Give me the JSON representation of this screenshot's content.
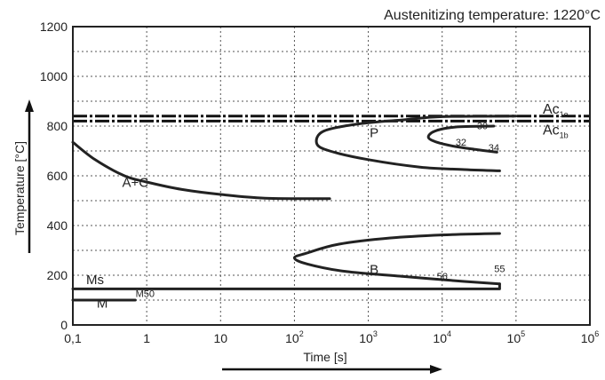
{
  "chart_data": {
    "type": "line",
    "title": "Austenitizing temperature: 1220°C",
    "xlabel": "Time [s]",
    "ylabel": "Temperature [°C]",
    "xscale": "log",
    "xlim": [
      0.1,
      1000000
    ],
    "ylim": [
      0,
      1200
    ],
    "grid": true,
    "x_ticks": [
      {
        "value": 0.1,
        "label": "0,1"
      },
      {
        "value": 1,
        "label": "1"
      },
      {
        "value": 10,
        "label": "10"
      },
      {
        "value": 100,
        "label": "10",
        "exp": "2"
      },
      {
        "value": 1000,
        "label": "10",
        "exp": "3"
      },
      {
        "value": 10000,
        "label": "10",
        "exp": "4"
      },
      {
        "value": 100000,
        "label": "10",
        "exp": "5"
      },
      {
        "value": 1000000,
        "label": "10",
        "exp": "6"
      }
    ],
    "y_ticks": [
      0,
      200,
      400,
      600,
      800,
      1000,
      1200
    ],
    "series": [
      {
        "points": [
          [
            0.1,
            735
          ],
          [
            0.2,
            665
          ],
          [
            0.5,
            600
          ],
          [
            1,
            575
          ],
          [
            3,
            545
          ],
          [
            10,
            525
          ],
          [
            40,
            510
          ],
          [
            300,
            508
          ]
        ]
      },
      {
        "points": [
          [
            100000,
            840
          ],
          [
            10000,
            838
          ],
          [
            3000,
            825
          ],
          [
            800,
            810
          ],
          [
            250,
            780
          ],
          [
            200,
            730
          ],
          [
            300,
            700
          ],
          [
            1000,
            665
          ],
          [
            5000,
            635
          ],
          [
            20000,
            625
          ],
          [
            60000,
            620
          ]
        ]
      },
      {
        "points": [
          [
            50000,
            800
          ],
          [
            15000,
            796
          ],
          [
            8000,
            780
          ],
          [
            6500,
            755
          ],
          [
            8500,
            735
          ],
          [
            15000,
            718
          ],
          [
            30000,
            705
          ],
          [
            55000,
            695
          ]
        ]
      },
      {
        "points": [
          [
            60000,
            368
          ],
          [
            10000,
            362
          ],
          [
            2000,
            350
          ],
          [
            400,
            325
          ],
          [
            150,
            290
          ],
          [
            100,
            270
          ],
          [
            150,
            245
          ],
          [
            500,
            215
          ],
          [
            3000,
            195
          ],
          [
            20000,
            175
          ],
          [
            60000,
            165
          ]
        ]
      },
      {
        "points": [
          [
            0.1,
            145
          ],
          [
            60000,
            145
          ],
          [
            60000,
            165
          ]
        ]
      },
      {
        "points": [
          [
            0.1,
            100
          ],
          [
            0.7,
            100
          ]
        ]
      }
    ],
    "reference_lines": [
      {
        "y": 840,
        "label": "Ac",
        "sub": "1e"
      },
      {
        "y": 820,
        "label": "Ac",
        "sub": "1b"
      }
    ],
    "annotations": [
      {
        "text": "P",
        "x": 1200,
        "y": 755
      },
      {
        "text": "A+C",
        "x": 0.7,
        "y": 555
      },
      {
        "text": "B",
        "x": 1200,
        "y": 205
      },
      {
        "text": "Ms",
        "x": 0.2,
        "y": 165
      },
      {
        "text": "M50",
        "x": 0.95,
        "y": 112
      },
      {
        "text": "M",
        "x": 0.25,
        "y": 70
      },
      {
        "text": "30",
        "x": 35000,
        "y": 787
      },
      {
        "text": "32",
        "x": 18000,
        "y": 722
      },
      {
        "text": "34",
        "x": 50000,
        "y": 700
      },
      {
        "text": "56",
        "x": 10000,
        "y": 182
      },
      {
        "text": "55",
        "x": 60000,
        "y": 213
      }
    ]
  }
}
